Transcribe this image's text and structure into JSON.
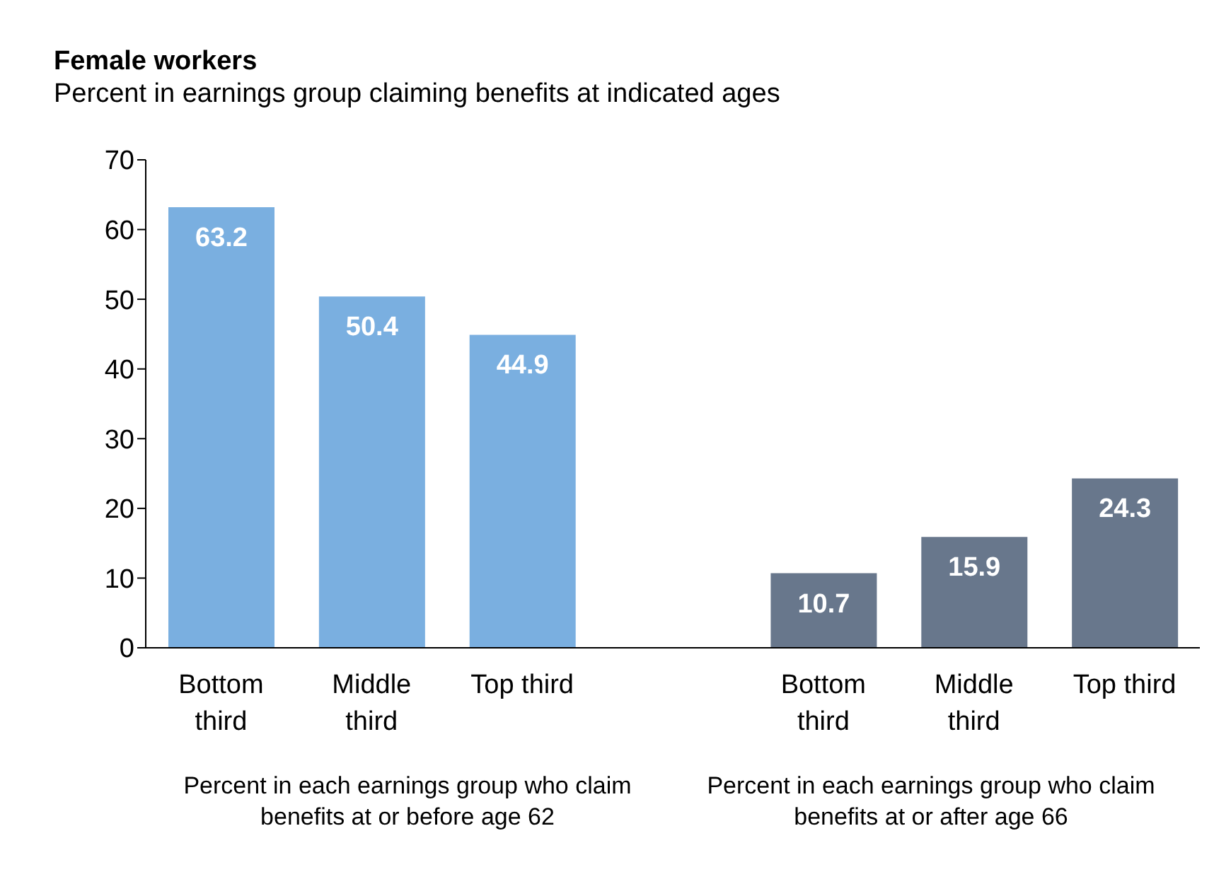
{
  "chart_data": {
    "type": "bar",
    "title": "Female workers",
    "subtitle": "Percent in earnings group claiming benefits at indicated ages",
    "categories": [
      "Bottom third",
      "Middle third",
      "Top third",
      null,
      "Bottom third",
      "Middle third",
      "Top third"
    ],
    "values": [
      63.2,
      50.4,
      44.9,
      null,
      10.7,
      15.9,
      24.3
    ],
    "colors": [
      "#7aafe0",
      "#7aafe0",
      "#7aafe0",
      "#7aafe0",
      "#68778c",
      "#68778c",
      "#68778c"
    ],
    "ylim": [
      0,
      70
    ],
    "yticks": [
      0,
      10,
      20,
      30,
      40,
      50,
      60,
      70
    ],
    "grid": false,
    "legend": false,
    "data_labels": true,
    "annotations": [
      "Percent in each earnings group who claim benefits at or before age 62",
      "Percent in each earnings group who claim benefits at or after age 66"
    ]
  }
}
